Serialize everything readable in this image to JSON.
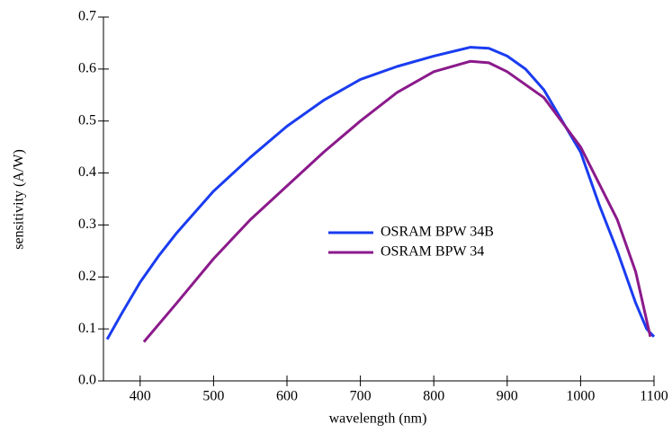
{
  "chart_data": {
    "type": "line",
    "x_label": "wavelength (nm)",
    "y_label": "sensitivity (A/W)",
    "xlim": [
      350,
      1100
    ],
    "xticks": [
      400,
      500,
      600,
      700,
      800,
      900,
      1000,
      1100
    ],
    "ylim": [
      0,
      0.7
    ],
    "yticks": [
      {
        "value": 0,
        "label": "0.0"
      },
      0.1,
      0.2,
      0.3,
      0.4,
      0.5,
      0.6,
      0.7
    ],
    "grid": false,
    "series": [
      {
        "name": "OSRAM BPW 34B",
        "color": "#1a3cf0",
        "x": [
          355,
          375,
          400,
          425,
          450,
          500,
          550,
          600,
          650,
          700,
          750,
          800,
          850,
          875,
          900,
          925,
          950,
          975,
          1000,
          1025,
          1050,
          1075,
          1090,
          1100
        ],
        "values": [
          0.08,
          0.13,
          0.19,
          0.24,
          0.285,
          0.365,
          0.43,
          0.49,
          0.54,
          0.58,
          0.605,
          0.625,
          0.642,
          0.64,
          0.625,
          0.6,
          0.56,
          0.5,
          0.44,
          0.34,
          0.25,
          0.15,
          0.1,
          0.085
        ]
      },
      {
        "name": "OSRAM BPW 34",
        "color": "#8b1a8b",
        "x": [
          405,
          450,
          500,
          550,
          600,
          650,
          700,
          750,
          800,
          850,
          875,
          900,
          950,
          1000,
          1050,
          1075,
          1095
        ],
        "values": [
          0.075,
          0.15,
          0.235,
          0.31,
          0.375,
          0.44,
          0.5,
          0.555,
          0.595,
          0.615,
          0.612,
          0.595,
          0.545,
          0.45,
          0.31,
          0.21,
          0.085
        ]
      }
    ]
  }
}
